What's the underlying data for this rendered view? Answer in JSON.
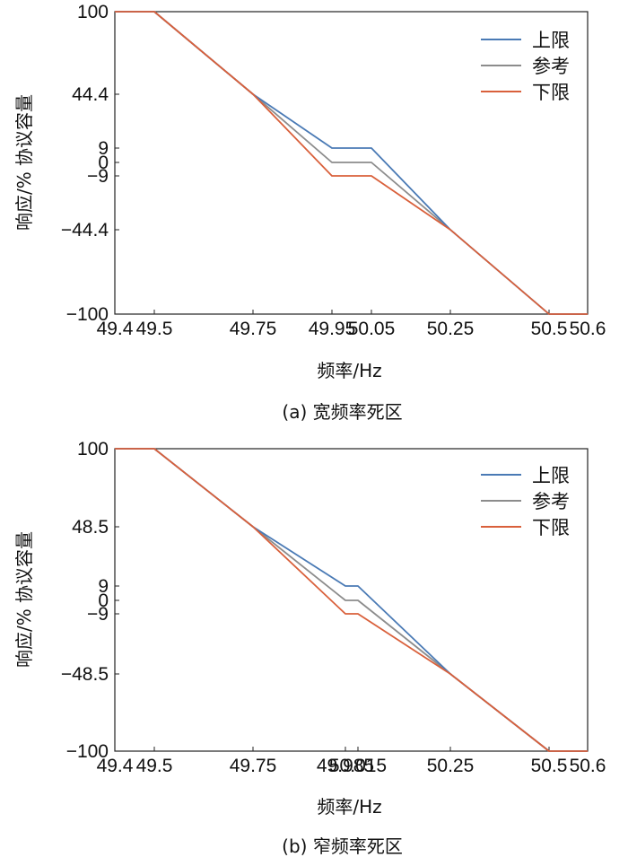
{
  "chart_data": [
    {
      "type": "line",
      "caption": "(a) 宽频率死区",
      "xlabel": "频率/Hz",
      "ylabel": "响应/% 协议容量",
      "xlim": [
        49.4,
        50.6
      ],
      "ylim": [
        -100,
        100
      ],
      "x_ticks": [
        {
          "value": 49.4,
          "label": "49.4"
        },
        {
          "value": 49.5,
          "label": "49.5"
        },
        {
          "value": 49.75,
          "label": "49.75"
        },
        {
          "value": 49.95,
          "label": "49.95"
        },
        {
          "value": 50.05,
          "label": "50.05"
        },
        {
          "value": 50.25,
          "label": "50.25"
        },
        {
          "value": 50.5,
          "label": "50.5"
        },
        {
          "value": 50.6,
          "label": "50.6"
        }
      ],
      "y_ticks": [
        {
          "value": 100,
          "label": "100"
        },
        {
          "value": 44.4,
          "label": "44.4"
        },
        {
          "value": 9,
          "label": "9"
        },
        {
          "value": 0,
          "label": "0"
        },
        {
          "value": -9,
          "label": "−9"
        },
        {
          "value": -44.4,
          "label": "−44.4"
        },
        {
          "value": -100,
          "label": "−100"
        }
      ],
      "legend_position": "top-right",
      "series": [
        {
          "name": "上限",
          "color": "#4a7ab5",
          "x": [
            49.4,
            49.5,
            49.75,
            49.95,
            50.05,
            50.25,
            50.5,
            50.6
          ],
          "y": [
            100,
            100,
            44.4,
            9,
            9,
            -44.4,
            -100,
            -100
          ]
        },
        {
          "name": "参考",
          "color": "#8c8c8c",
          "x": [
            49.4,
            49.5,
            49.75,
            49.95,
            50.05,
            50.25,
            50.5,
            50.6
          ],
          "y": [
            100,
            100,
            44.4,
            0,
            0,
            -44.4,
            -100,
            -100
          ]
        },
        {
          "name": "下限",
          "color": "#d9603b",
          "x": [
            49.4,
            49.5,
            49.75,
            49.95,
            50.05,
            50.25,
            50.5,
            50.6
          ],
          "y": [
            100,
            100,
            44.4,
            -9,
            -9,
            -44.4,
            -100,
            -100
          ]
        }
      ]
    },
    {
      "type": "line",
      "caption": "(b) 窄频率死区",
      "xlabel": "频率/Hz",
      "ylabel": "响应/% 协议容量",
      "xlim": [
        49.4,
        50.6
      ],
      "ylim": [
        -100,
        100
      ],
      "x_ticks": [
        {
          "value": 49.4,
          "label": "49.4"
        },
        {
          "value": 49.5,
          "label": "49.5"
        },
        {
          "value": 49.75,
          "label": "49.75"
        },
        {
          "value": 49.985,
          "label": "49.985"
        },
        {
          "value": 50.015,
          "label": "50.015"
        },
        {
          "value": 50.25,
          "label": "50.25"
        },
        {
          "value": 50.5,
          "label": "50.5"
        },
        {
          "value": 50.6,
          "label": "50.6"
        }
      ],
      "y_ticks": [
        {
          "value": 100,
          "label": "100"
        },
        {
          "value": 48.5,
          "label": "48.5"
        },
        {
          "value": 9,
          "label": "9"
        },
        {
          "value": 0,
          "label": "0"
        },
        {
          "value": -9,
          "label": "−9"
        },
        {
          "value": -48.5,
          "label": "−48.5"
        },
        {
          "value": -100,
          "label": "−100"
        }
      ],
      "legend_position": "top-right",
      "series": [
        {
          "name": "上限",
          "color": "#4a7ab5",
          "x": [
            49.4,
            49.5,
            49.75,
            49.985,
            50.015,
            50.25,
            50.5,
            50.6
          ],
          "y": [
            100,
            100,
            48.5,
            9,
            9,
            -48.5,
            -100,
            -100
          ]
        },
        {
          "name": "参考",
          "color": "#8c8c8c",
          "x": [
            49.4,
            49.5,
            49.75,
            49.985,
            50.015,
            50.25,
            50.5,
            50.6
          ],
          "y": [
            100,
            100,
            48.5,
            0,
            0,
            -48.5,
            -100,
            -100
          ]
        },
        {
          "name": "下限",
          "color": "#d9603b",
          "x": [
            49.4,
            49.5,
            49.75,
            49.985,
            50.015,
            50.25,
            50.5,
            50.6
          ],
          "y": [
            100,
            100,
            48.5,
            -9,
            -9,
            -48.5,
            -100,
            -100
          ]
        }
      ]
    }
  ]
}
